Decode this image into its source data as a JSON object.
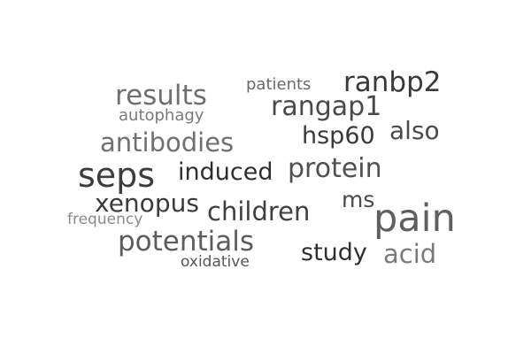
{
  "words": [
    {
      "id": "pain",
      "text": "pain",
      "color": "#5f5f5f"
    },
    {
      "id": "seps",
      "text": "seps",
      "color": "#3c3c3c"
    },
    {
      "id": "results",
      "text": "results",
      "color": "#6f6f6f"
    },
    {
      "id": "ranbp2",
      "text": "ranbp2",
      "color": "#3a3a3a"
    },
    {
      "id": "rangap1",
      "text": "rangap1",
      "color": "#4a4a4a"
    },
    {
      "id": "antibodies",
      "text": "antibodies",
      "color": "#707070"
    },
    {
      "id": "protein",
      "text": "protein",
      "color": "#505050"
    },
    {
      "id": "potentials",
      "text": "potentials",
      "color": "#5c5c5c"
    },
    {
      "id": "children",
      "text": "children",
      "color": "#404040"
    },
    {
      "id": "induced",
      "text": "induced",
      "color": "#2f2f2f"
    },
    {
      "id": "xenopus",
      "text": "xenopus",
      "color": "#3a3a3a"
    },
    {
      "id": "hsp60",
      "text": "hsp60",
      "color": "#3a3a3a"
    },
    {
      "id": "also",
      "text": "also",
      "color": "#4a4a4a"
    },
    {
      "id": "study",
      "text": "study",
      "color": "#2f2f2f"
    },
    {
      "id": "acid",
      "text": "acid",
      "color": "#7a7a7a"
    },
    {
      "id": "ms",
      "text": "ms",
      "color": "#4a4a4a"
    },
    {
      "id": "patients",
      "text": "patients",
      "color": "#6a6a6a"
    },
    {
      "id": "autophagy",
      "text": "autophagy",
      "color": "#7a7a7a"
    },
    {
      "id": "frequency",
      "text": "frequency",
      "color": "#8a8a8a"
    },
    {
      "id": "oxidative",
      "text": "oxidative",
      "color": "#555555"
    }
  ]
}
